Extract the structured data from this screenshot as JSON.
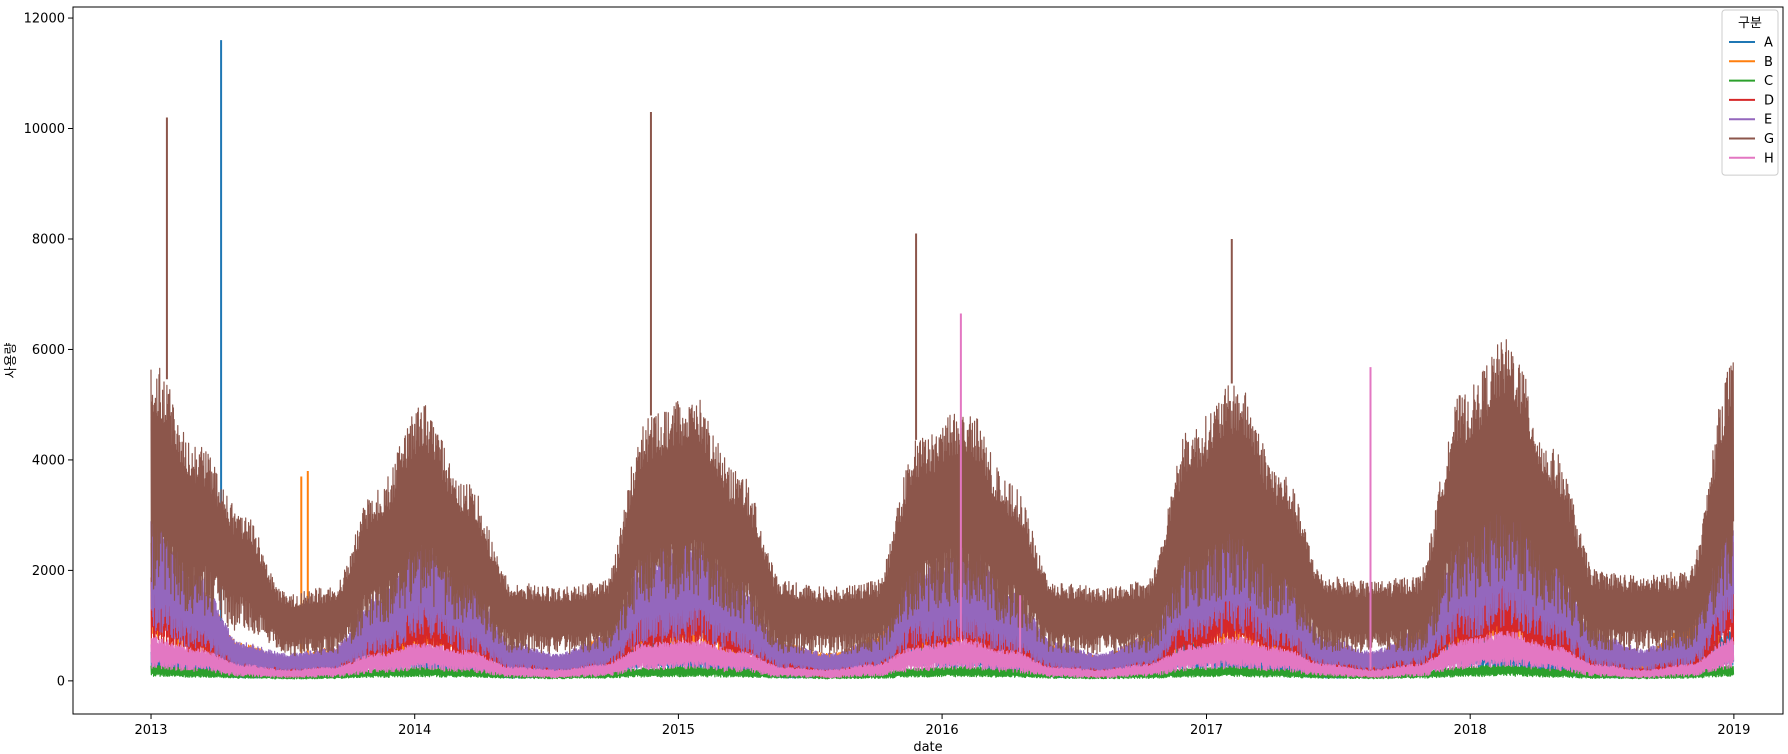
{
  "chart_data": {
    "type": "line",
    "title": "",
    "xlabel": "date",
    "ylabel": "사용량",
    "xlim": [
      "2012-09-15",
      "2019-03-10"
    ],
    "ylim": [
      -600,
      12200
    ],
    "x_ticks": [
      "2013",
      "2014",
      "2015",
      "2016",
      "2017",
      "2018",
      "2019"
    ],
    "y_ticks": [
      0,
      2000,
      4000,
      6000,
      8000,
      10000,
      12000
    ],
    "grid": false,
    "legend": {
      "title": "구분",
      "placement": "top-right"
    },
    "x_range": [
      "2013-01-01",
      "2018-12-31"
    ],
    "series": [
      {
        "name": "A",
        "color": "#1f77b4",
        "baseline": [
          600,
          400,
          180,
          200,
          450,
          780,
          650,
          350,
          180,
          200,
          500,
          820,
          650,
          350,
          180,
          210,
          550,
          900,
          700,
          380,
          200,
          220,
          500,
          780,
          600,
          360,
          170,
          220,
          550,
          900,
          700,
          350,
          180,
          200,
          550,
          900
        ],
        "spikes": [
          {
            "date": "2013-04-08",
            "value": 11600
          }
        ]
      },
      {
        "name": "B",
        "color": "#ff7f0e",
        "baseline": [
          2700,
          1700,
          700,
          400,
          600,
          1300,
          1900,
          1400,
          600,
          400,
          800,
          1900,
          2100,
          1500,
          700,
          500,
          800,
          1800,
          2000,
          1400,
          650,
          450,
          800,
          1900,
          2200,
          1500,
          700,
          500,
          900,
          2100,
          2400,
          1600,
          700,
          500,
          1000,
          2800
        ],
        "spikes": [
          {
            "date": "2013-07-28",
            "value": 3700
          },
          {
            "date": "2013-08-06",
            "value": 3800
          }
        ]
      },
      {
        "name": "C",
        "color": "#2ca02c",
        "baseline": [
          280,
          230,
          160,
          120,
          140,
          220,
          250,
          220,
          160,
          130,
          170,
          240,
          260,
          230,
          170,
          130,
          160,
          240,
          260,
          220,
          160,
          130,
          160,
          240,
          260,
          220,
          160,
          130,
          170,
          260,
          290,
          230,
          160,
          130,
          170,
          290
        ],
        "spikes": []
      },
      {
        "name": "D",
        "color": "#d62728",
        "baseline": [
          2200,
          1400,
          500,
          250,
          400,
          1100,
          1700,
          1200,
          450,
          250,
          500,
          1600,
          1900,
          1200,
          450,
          250,
          500,
          1500,
          1800,
          1100,
          450,
          250,
          500,
          1600,
          2000,
          1300,
          500,
          250,
          550,
          1800,
          2100,
          1300,
          500,
          250,
          600,
          2100
        ],
        "spikes": []
      },
      {
        "name": "E",
        "color": "#9467bd",
        "baseline": [
          3200,
          2000,
          700,
          500,
          600,
          1600,
          2800,
          1900,
          700,
          500,
          800,
          2400,
          2700,
          1800,
          700,
          500,
          800,
          2200,
          2500,
          1700,
          700,
          500,
          800,
          2400,
          3000,
          2000,
          800,
          550,
          900,
          2700,
          3500,
          2300,
          850,
          600,
          900,
          3300
        ],
        "spikes": []
      },
      {
        "name": "G",
        "color": "#8c564b",
        "baseline": [
          5900,
          4300,
          3100,
          1600,
          1700,
          3500,
          5000,
          3600,
          1800,
          1700,
          1800,
          4800,
          5200,
          3800,
          1800,
          1700,
          1800,
          4400,
          5000,
          3600,
          1800,
          1700,
          1800,
          4600,
          5400,
          3800,
          1900,
          1800,
          1900,
          5200,
          6200,
          4200,
          2000,
          1900,
          2000,
          5800
        ],
        "spikes": [
          {
            "date": "2013-01-23",
            "value": 10200
          },
          {
            "date": "2014-11-24",
            "value": 10300
          },
          {
            "date": "2015-11-26",
            "value": 8100
          },
          {
            "date": "2017-02-05",
            "value": 8000
          }
        ]
      },
      {
        "name": "H",
        "color": "#e377c2",
        "baseline": [
          800,
          600,
          300,
          200,
          250,
          500,
          700,
          550,
          250,
          200,
          300,
          700,
          750,
          550,
          250,
          200,
          300,
          650,
          750,
          550,
          250,
          200,
          300,
          650,
          800,
          600,
          300,
          200,
          300,
          750,
          900,
          650,
          300,
          200,
          300,
          800
        ],
        "spikes": [
          {
            "date": "2016-01-27",
            "value": 6650
          },
          {
            "date": "2016-04-18",
            "value": 1550
          },
          {
            "date": "2017-08-16",
            "value": 5680
          }
        ]
      }
    ]
  }
}
